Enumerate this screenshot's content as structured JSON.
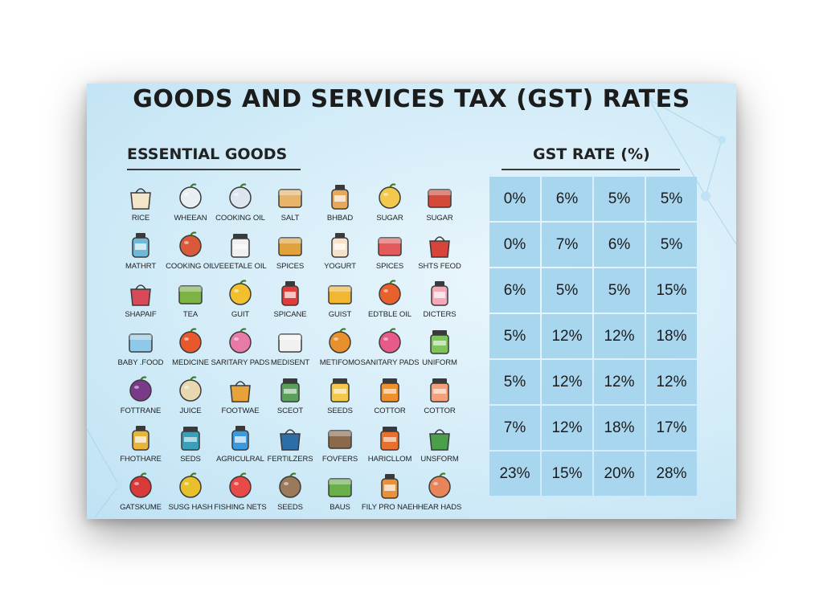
{
  "title": "GOODS AND SERVICES TAX (GST) RATES",
  "left_heading": "ESSENTIAL GOODS",
  "right_heading": "GST RATE (%)",
  "goods": [
    {
      "label": "RICE",
      "icon": "rice-bowl-icon",
      "color": "#f3e6c8"
    },
    {
      "label": "WHEEAN",
      "icon": "milk-bottle-icon",
      "color": "#e8eef2"
    },
    {
      "label": "COOKING OIL",
      "icon": "oil-pouch-icon",
      "color": "#dde6ee"
    },
    {
      "label": "SALT",
      "icon": "bread-icon",
      "color": "#e8b36a"
    },
    {
      "label": "BHBAD",
      "icon": "bread-loaf-icon",
      "color": "#e8a85a"
    },
    {
      "label": "SUGAR",
      "icon": "butter-icon",
      "color": "#f2c94c"
    },
    {
      "label": "SUGAR",
      "icon": "boot-icon",
      "color": "#d24a3a"
    },
    {
      "label": "MATHRT",
      "icon": "plate-icon",
      "color": "#6fb8d8"
    },
    {
      "label": "COOKING OIL",
      "icon": "oil-bottle-icon",
      "color": "#d85a3a"
    },
    {
      "label": "VEEETALE OIL",
      "icon": "milk-carton-icon",
      "color": "#f0f0f0"
    },
    {
      "label": "SPICES",
      "icon": "spice-jar-icon",
      "color": "#e0a23a"
    },
    {
      "label": "YOGURT",
      "icon": "yogurt-icon",
      "color": "#f6e2c8"
    },
    {
      "label": "SPICES",
      "icon": "spice-bottle-icon",
      "color": "#e35a5a"
    },
    {
      "label": "SHTS FEOD",
      "icon": "jar-icon",
      "color": "#d8443a"
    },
    {
      "label": "SHAPAIF",
      "icon": "shampoo-jar-icon",
      "color": "#d84a5a"
    },
    {
      "label": "TEA",
      "icon": "tea-leaves-icon",
      "color": "#7cb342"
    },
    {
      "label": "GUIT",
      "icon": "apple-icon",
      "color": "#f2c02e"
    },
    {
      "label": "SPICANE",
      "icon": "apple-red-icon",
      "color": "#e03b3b"
    },
    {
      "label": "GUIST",
      "icon": "cheese-icon",
      "color": "#f2b730"
    },
    {
      "label": "EDTBLE OIL",
      "icon": "soap-bottle-icon",
      "color": "#e8602c"
    },
    {
      "label": "DICTERS",
      "icon": "diaper-icon",
      "color": "#f4a8b8"
    },
    {
      "label": "BABY .FOOD",
      "icon": "water-bottle-icon",
      "color": "#8ec9ea"
    },
    {
      "label": "MEDICINE",
      "icon": "fruits-icon",
      "color": "#e8582c"
    },
    {
      "label": "SARITARY PADS",
      "icon": "lotion-bottle-icon",
      "color": "#e87aa8"
    },
    {
      "label": "MEDISENT",
      "icon": "toothpaste-icon",
      "color": "#f1f1f1"
    },
    {
      "label": "METIFOMO",
      "icon": "medicine-bottle-icon",
      "color": "#e8902c"
    },
    {
      "label": "SANITARY PADS",
      "icon": "fruit-spray-icon",
      "color": "#e85a8a"
    },
    {
      "label": "UNIFORM",
      "icon": "diaper-green-icon",
      "color": "#7ec45a"
    },
    {
      "label": "FOTTRANE",
      "icon": "ink-bottle-icon",
      "color": "#7a3a8a"
    },
    {
      "label": "JUICE",
      "icon": "candle-icon",
      "color": "#e8d8b0"
    },
    {
      "label": "FOOTWAE",
      "icon": "backpack-icon",
      "color": "#e8a23a"
    },
    {
      "label": "SCEOT",
      "icon": "flower-icon",
      "color": "#5aa05a"
    },
    {
      "label": "SEEDS",
      "icon": "candles-icon",
      "color": "#f2c94c"
    },
    {
      "label": "COTTOR",
      "icon": "umbrella-icon",
      "color": "#f0902c"
    },
    {
      "label": "COTTOR",
      "icon": "map-icon",
      "color": "#f4a07a"
    },
    {
      "label": "FHOTHARE",
      "icon": "umbrella-small-icon",
      "color": "#e8b43a"
    },
    {
      "label": "SEDS",
      "icon": "notebook-icon",
      "color": "#3aa0b8"
    },
    {
      "label": "AGRICULRAL",
      "icon": "helmet-icon",
      "color": "#3a9ae0"
    },
    {
      "label": "FERTILZERS",
      "icon": "seeds-icon",
      "color": "#2c6ea8"
    },
    {
      "label": "FOVFERS",
      "icon": "pills-icon",
      "color": "#8a6a4a"
    },
    {
      "label": "HARICLLOM",
      "icon": "tools-icon",
      "color": "#e8702c"
    },
    {
      "label": "UNSFORM",
      "icon": "box-icon",
      "color": "#4aa04a"
    },
    {
      "label": "GATSKUME",
      "icon": "bicycle-icon",
      "color": "#d83a3a"
    },
    {
      "label": "SUSG HASH",
      "icon": "school-bag-icon",
      "color": "#e8c02c"
    },
    {
      "label": "FISHING NETS",
      "icon": "helmet-red-icon",
      "color": "#e84a4a"
    },
    {
      "label": "SEEDS",
      "icon": "shovel-icon",
      "color": "#9a7a5a"
    },
    {
      "label": "BAUS",
      "icon": "bag-green-icon",
      "color": "#6ab04a"
    },
    {
      "label": "FILY PRO NAEH",
      "icon": "paint-brush-icon",
      "color": "#e8903a"
    },
    {
      "label": "HEAR HADS",
      "icon": "hook-icon",
      "color": "#e8845a"
    }
  ],
  "rates": [
    [
      "0%",
      "6%",
      "5%",
      "5%"
    ],
    [
      "0%",
      "7%",
      "6%",
      "5%"
    ],
    [
      "6%",
      "5%",
      "5%",
      "15%"
    ],
    [
      "5%",
      "12%",
      "12%",
      "18%"
    ],
    [
      "5%",
      "12%",
      "12%",
      "12%"
    ],
    [
      "7%",
      "12%",
      "18%",
      "17%"
    ],
    [
      "23%",
      "15%",
      "20%",
      "28%"
    ]
  ]
}
